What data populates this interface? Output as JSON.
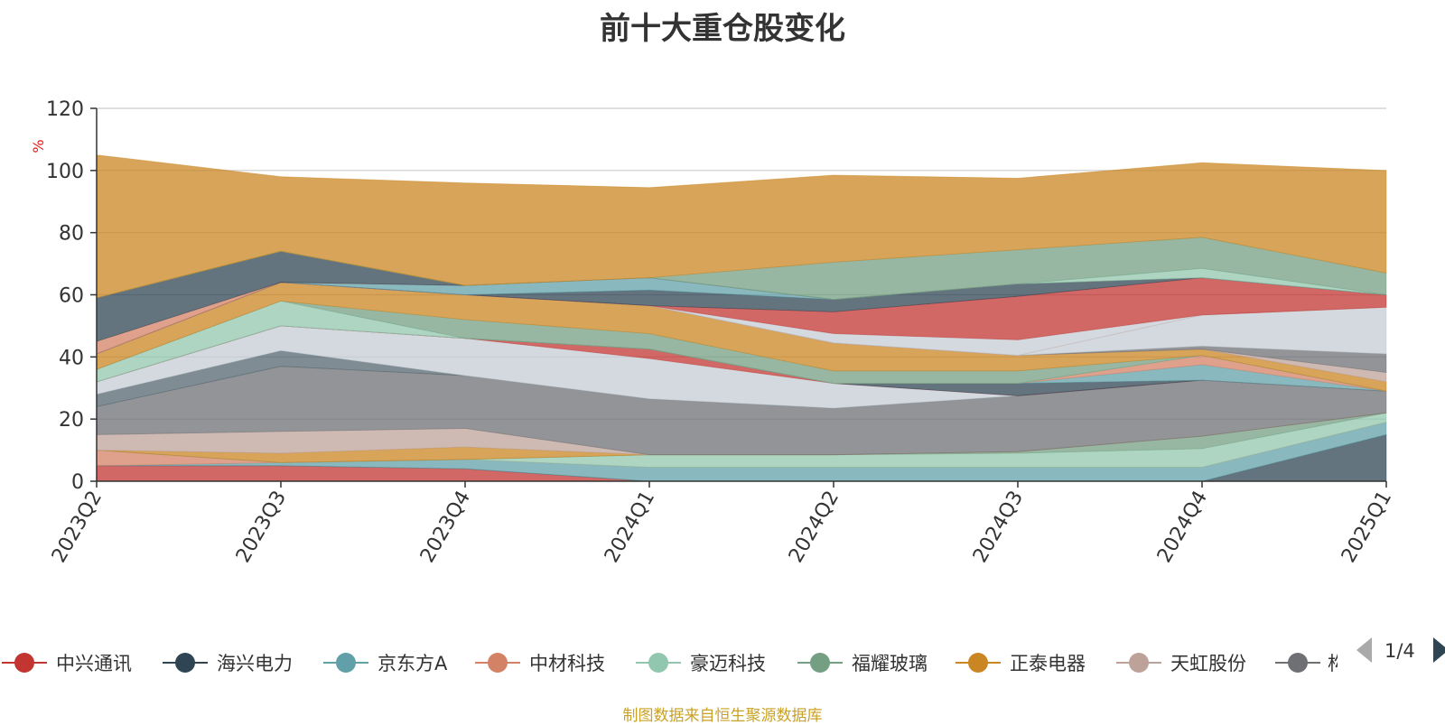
{
  "chart_data": {
    "type": "area",
    "title": "前十大重仓股变化",
    "ylabel": "%",
    "xlabel": "",
    "ylim": [
      0,
      120
    ],
    "yticks": [
      0,
      20,
      40,
      60,
      80,
      100,
      120
    ],
    "grid": true,
    "legend_position": "bottom",
    "categories": [
      "2023Q2",
      "2023Q3",
      "2023Q4",
      "2024Q1",
      "2024Q2",
      "2024Q3",
      "2024Q4",
      "2025Q1"
    ],
    "series": [
      {
        "name": "中兴通讯",
        "color": "#c23531",
        "values": [
          5,
          5,
          4,
          0,
          0,
          0,
          0,
          0
        ]
      },
      {
        "name": "海兴电力",
        "color": "#2f4554",
        "values": [
          0,
          0,
          0,
          0,
          0,
          0,
          0,
          15
        ]
      },
      {
        "name": "京东方A",
        "color": "#61a0a8",
        "values": [
          0,
          1,
          3,
          4.5,
          4.5,
          4.5,
          4.5,
          4
        ]
      },
      {
        "name": "中材科技",
        "color": "#d48265",
        "values": [
          5,
          0,
          0,
          0,
          0,
          0,
          0,
          0
        ]
      },
      {
        "name": "豪迈科技",
        "color": "#91c7ae",
        "values": [
          0,
          0,
          0,
          4,
          4,
          4.5,
          6,
          3
        ]
      },
      {
        "name": "福耀玻璃",
        "color": "#749f83",
        "values": [
          0,
          0,
          0,
          0,
          0,
          0.5,
          4,
          0
        ]
      },
      {
        "name": "正泰电器",
        "color": "#ca8622",
        "values": [
          0,
          3,
          4,
          0,
          0,
          0,
          0,
          0
        ]
      },
      {
        "name": "天虹股份",
        "color": "#bda29a",
        "values": [
          5,
          7,
          6,
          0,
          0,
          0,
          0,
          0
        ]
      },
      {
        "name": "",
        "color": "#6e7074",
        "values": [
          9,
          21,
          17,
          18,
          15,
          18,
          18,
          7
        ]
      },
      {
        "name": "",
        "color": "#546570",
        "values": [
          4,
          5,
          0,
          0,
          0,
          0,
          0,
          0
        ]
      },
      {
        "name": "",
        "color": "#c4ccd3",
        "values": [
          4,
          8,
          12,
          13,
          8,
          0,
          0,
          0
        ]
      },
      {
        "name": "",
        "color": "#c23531",
        "values": [
          0,
          0,
          0,
          3,
          0,
          0,
          0,
          0
        ]
      },
      {
        "name": "",
        "color": "#2f4554",
        "values": [
          0,
          0,
          0,
          0,
          0,
          4,
          0,
          0
        ]
      },
      {
        "name": "",
        "color": "#61a0a8",
        "values": [
          0,
          0,
          0,
          0,
          0,
          0,
          5,
          0
        ]
      },
      {
        "name": "",
        "color": "#d48265",
        "values": [
          0,
          0,
          0,
          0,
          0,
          0,
          3,
          0
        ]
      },
      {
        "name": "",
        "color": "#91c7ae",
        "values": [
          4,
          8,
          0,
          0,
          0,
          0,
          0,
          0
        ]
      },
      {
        "name": "",
        "color": "#749f83",
        "values": [
          0,
          0,
          6,
          5,
          4,
          4,
          0,
          0
        ]
      },
      {
        "name": "",
        "color": "#ca8622",
        "values": [
          5,
          6,
          8,
          9,
          9,
          5,
          2,
          3
        ]
      },
      {
        "name": "",
        "color": "#bda29a",
        "values": [
          0,
          0,
          0,
          0,
          0,
          0,
          0,
          3
        ]
      },
      {
        "name": "",
        "color": "#6e7074",
        "values": [
          0,
          0,
          0,
          0,
          0,
          0,
          1,
          6
        ]
      },
      {
        "name": "",
        "color": "#c4ccd3",
        "values": [
          0,
          0,
          0,
          0,
          0,
          0,
          10,
          15
        ]
      },
      {
        "name": "",
        "color": "#d48265",
        "values": [
          0,
          0,
          0,
          0,
          0,
          0,
          0,
          0
        ]
      },
      {
        "name": "",
        "color": "#c4ccd3",
        "values": [
          0,
          0,
          0,
          0,
          3,
          5,
          0,
          0
        ]
      },
      {
        "name": "",
        "color": "#c23531",
        "values": [
          0,
          0,
          0,
          0,
          7,
          14,
          12,
          4
        ]
      },
      {
        "name": "",
        "color": "#2f4554",
        "values": [
          0,
          0,
          0,
          5,
          4,
          4,
          0,
          0
        ]
      },
      {
        "name": "",
        "color": "#61a0a8",
        "values": [
          0,
          0,
          3,
          4,
          0,
          0,
          0,
          0
        ]
      },
      {
        "name": "",
        "color": "#d48265",
        "values": [
          4,
          0,
          0,
          0,
          0,
          0,
          0,
          0
        ]
      },
      {
        "name": "",
        "color": "#2f4554",
        "values": [
          14,
          10,
          0,
          0,
          0,
          0,
          0,
          0
        ]
      },
      {
        "name": "",
        "color": "#91c7ae",
        "values": [
          0,
          0,
          0,
          0,
          0,
          0,
          3,
          0
        ]
      },
      {
        "name": "",
        "color": "#749f83",
        "values": [
          0,
          0,
          0,
          0,
          12,
          11,
          10,
          7
        ]
      },
      {
        "name": "",
        "color": "#ca8622",
        "values": [
          46,
          24,
          33,
          29,
          28,
          23,
          24,
          33
        ]
      }
    ]
  },
  "legend": {
    "items": [
      {
        "label": "中兴通讯",
        "color": "#c23531"
      },
      {
        "label": "海兴电力",
        "color": "#2f4554"
      },
      {
        "label": "京东方A",
        "color": "#61a0a8"
      },
      {
        "label": "中材科技",
        "color": "#d48265"
      },
      {
        "label": "豪迈科技",
        "color": "#91c7ae"
      },
      {
        "label": "福耀玻璃",
        "color": "#749f83"
      },
      {
        "label": "正泰电器",
        "color": "#ca8622"
      },
      {
        "label": "天虹股份",
        "color": "#bda29a"
      },
      {
        "label": "",
        "color": "#6e7074"
      }
    ],
    "truncated_label": "构",
    "page_indicator": "1/4"
  },
  "footer": {
    "source_note": "制图数据来自恒生聚源数据库"
  }
}
